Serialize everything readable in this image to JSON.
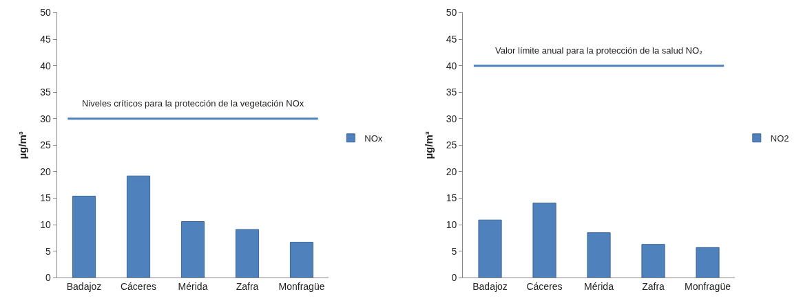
{
  "chart_data": [
    {
      "type": "bar",
      "ylabel": "µg/m³",
      "categories": [
        "Badajoz",
        "Cáceres",
        "Mérida",
        "Zafra",
        "Monfragüe"
      ],
      "series": [
        {
          "name": "NOx",
          "color": "#4f81bd",
          "values": [
            15.4,
            19.2,
            10.6,
            9.1,
            6.7
          ]
        }
      ],
      "ylim": [
        0,
        50
      ],
      "yticks": [
        0,
        5,
        10,
        15,
        20,
        25,
        30,
        35,
        40,
        45,
        50
      ],
      "ref_lines": [
        {
          "axis": "y",
          "value": 30,
          "label": "Niveles críticos para la protección de la vegetación NOx",
          "color": "#4f81bd"
        }
      ],
      "legend": "right"
    },
    {
      "type": "bar",
      "ylabel": "µg/m³",
      "categories": [
        "Badajoz",
        "Cáceres",
        "Mérida",
        "Zafra",
        "Monfragüe"
      ],
      "series": [
        {
          "name": "NO2",
          "color": "#4f81bd",
          "values": [
            10.9,
            14.1,
            8.5,
            6.3,
            5.7
          ]
        }
      ],
      "ylim": [
        0,
        50
      ],
      "yticks": [
        0,
        5,
        10,
        15,
        20,
        25,
        30,
        35,
        40,
        45,
        50
      ],
      "ref_lines": [
        {
          "axis": "y",
          "value": 40,
          "label": "Valor límite anual para la protección de la salud NO₂",
          "color": "#4f81bd"
        }
      ],
      "legend": "right"
    }
  ]
}
